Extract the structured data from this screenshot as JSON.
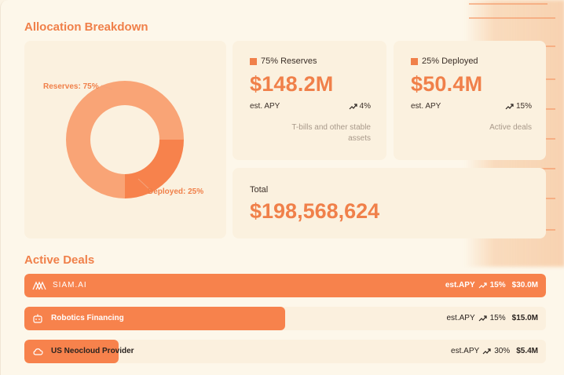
{
  "allocation": {
    "title": "Allocation Breakdown",
    "donut": {
      "reserves_label": "Reserves: 75%",
      "deployed_label": "Deployed: 25%",
      "reserves_pct": 75,
      "deployed_pct": 25,
      "reserves_color": "#f9a476",
      "deployed_color": "#f7824c"
    },
    "reserves": {
      "heading": "75% Reserves",
      "amount": "$148.2M",
      "apy_label": "est. APY",
      "apy_value": "4%",
      "description_line1": "T-bills and other stable",
      "description_line2": "assets"
    },
    "deployed": {
      "heading": "25% Deployed",
      "amount": "$50.4M",
      "apy_label": "est. APY",
      "apy_value": "15%",
      "description_line1": "Active deals"
    },
    "total": {
      "label": "Total",
      "amount": "$198,568,624"
    }
  },
  "active_deals": {
    "title": "Active Deals",
    "deals": [
      {
        "name": "SIAM.AI",
        "icon": "siam-logo-icon",
        "apy_label": "est.APY",
        "apy_value": "15%",
        "amount": "$30.0M",
        "fill_fraction": 1.0
      },
      {
        "name": "Robotics Financing",
        "icon": "robot-icon",
        "apy_label": "est.APY",
        "apy_value": "15%",
        "amount": "$15.0M",
        "fill_fraction": 0.5
      },
      {
        "name": "US Neocloud Provider",
        "icon": "cloud-icon",
        "apy_label": "est.APY",
        "apy_value": "30%",
        "amount": "$5.4M",
        "fill_fraction": 0.18
      }
    ]
  },
  "colors": {
    "accent": "#f0804a",
    "bar_fill": "#f7824c",
    "card_bg": "#fbf1df"
  }
}
